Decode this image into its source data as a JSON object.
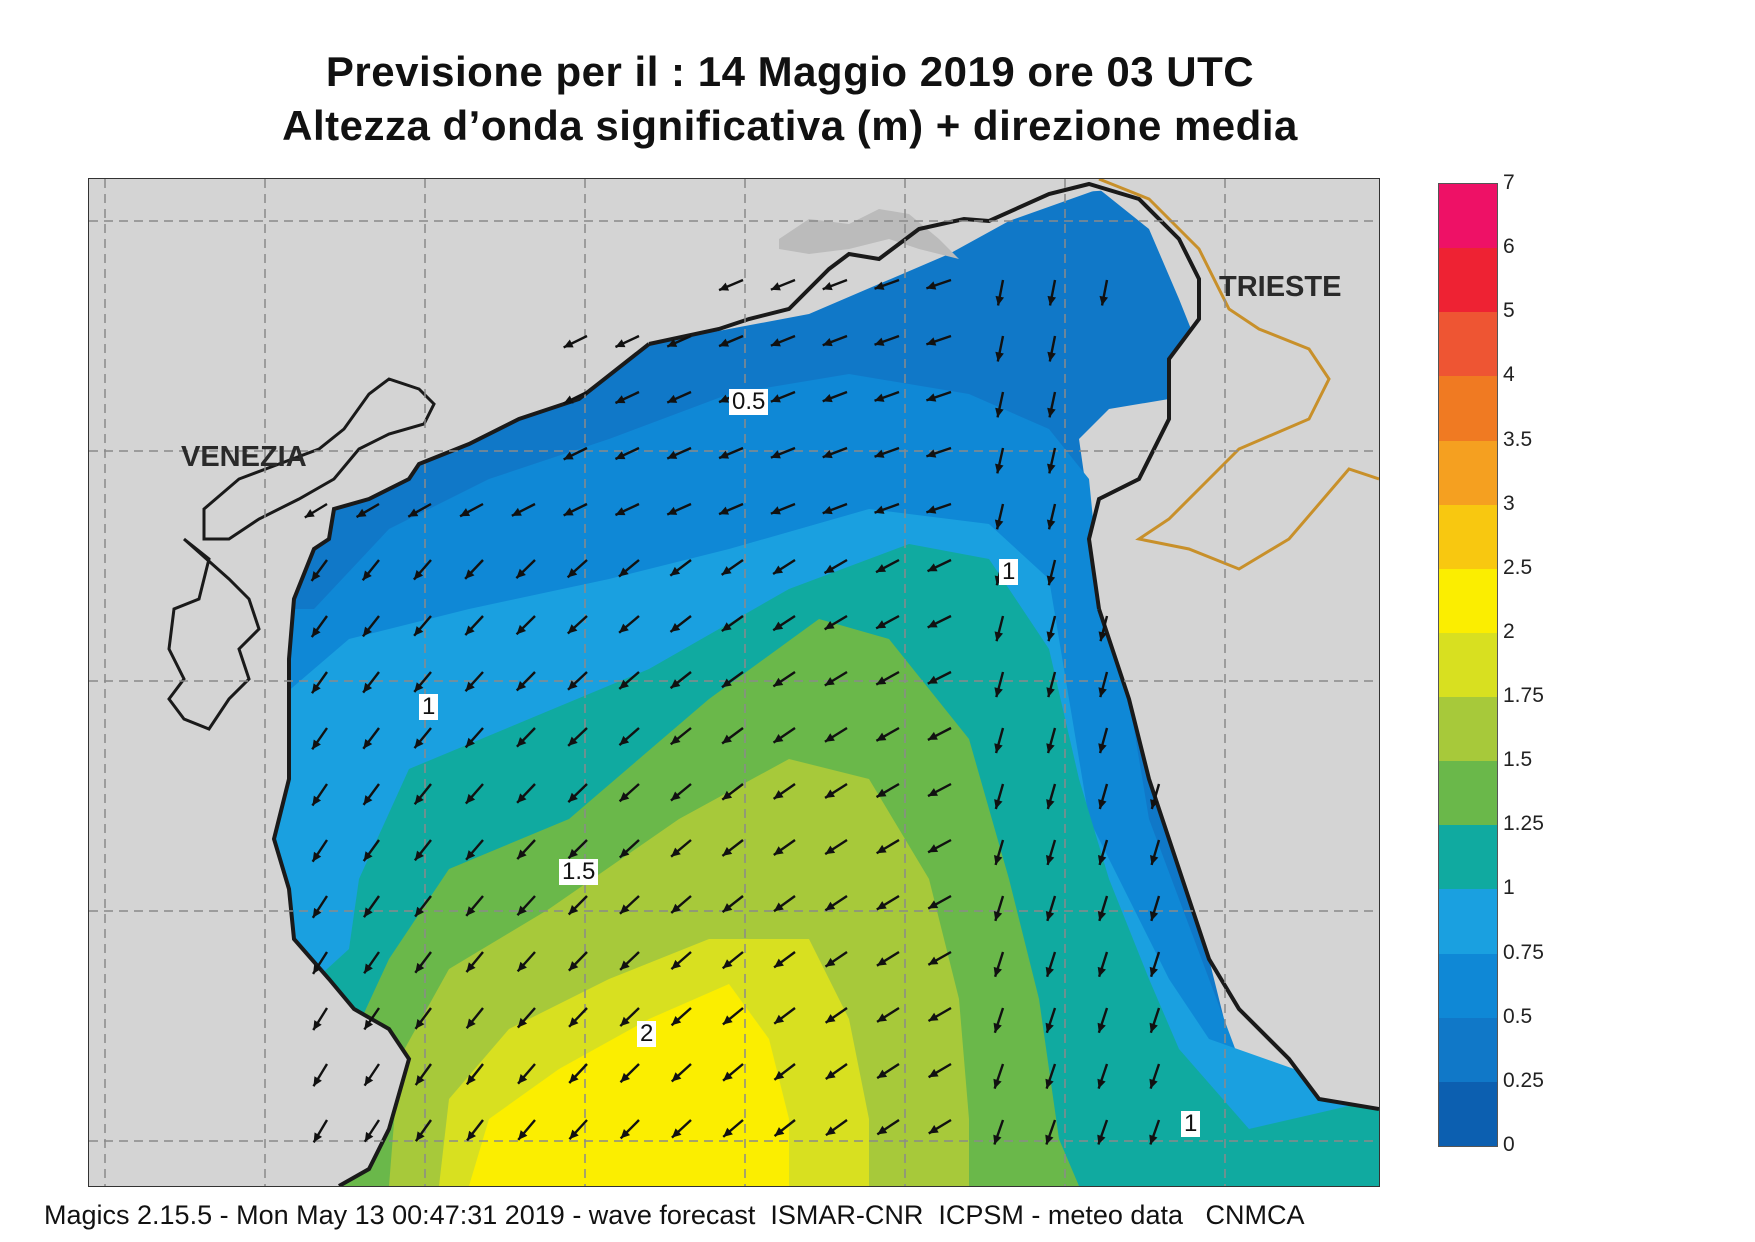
{
  "title": {
    "line1": "Previsione per il  :  14   Maggio  2019   ore 03 UTC",
    "line2": "Altezza d’onda significativa (m) + direzione media"
  },
  "map": {
    "cities": [
      "VENEZIA",
      "TRIESTE"
    ],
    "contour_labels": [
      "0.5",
      "1",
      "1",
      "1.5",
      "2",
      "1"
    ],
    "colors": {
      "land": "#d4d4d4",
      "coast": "#1a1a1a",
      "border": "#c8902a",
      "arrow": "#111111"
    }
  },
  "colorbar": {
    "labels": [
      "7",
      "6",
      "5",
      "4",
      "3.5",
      "3",
      "2.5",
      "2",
      "1.75",
      "1.5",
      "1.25",
      "1",
      "0.75",
      "0.5",
      "0.25",
      "0"
    ],
    "colors": [
      "#ee1166",
      "#ee2233",
      "#ee5533",
      "#f07a22",
      "#f5a020",
      "#f8c810",
      "#fbee00",
      "#d8e020",
      "#a7c93a",
      "#6ab84a",
      "#10aaa0",
      "#1aa0e0",
      "#0f88d6",
      "#1078c8",
      "#0c5fb0"
    ]
  },
  "footer": "Magics 2.15.5 - Mon May 13 00:47:31 2019 - wave forecast  ISMAR-CNR  ICPSM - meteo data   CNMCA"
}
